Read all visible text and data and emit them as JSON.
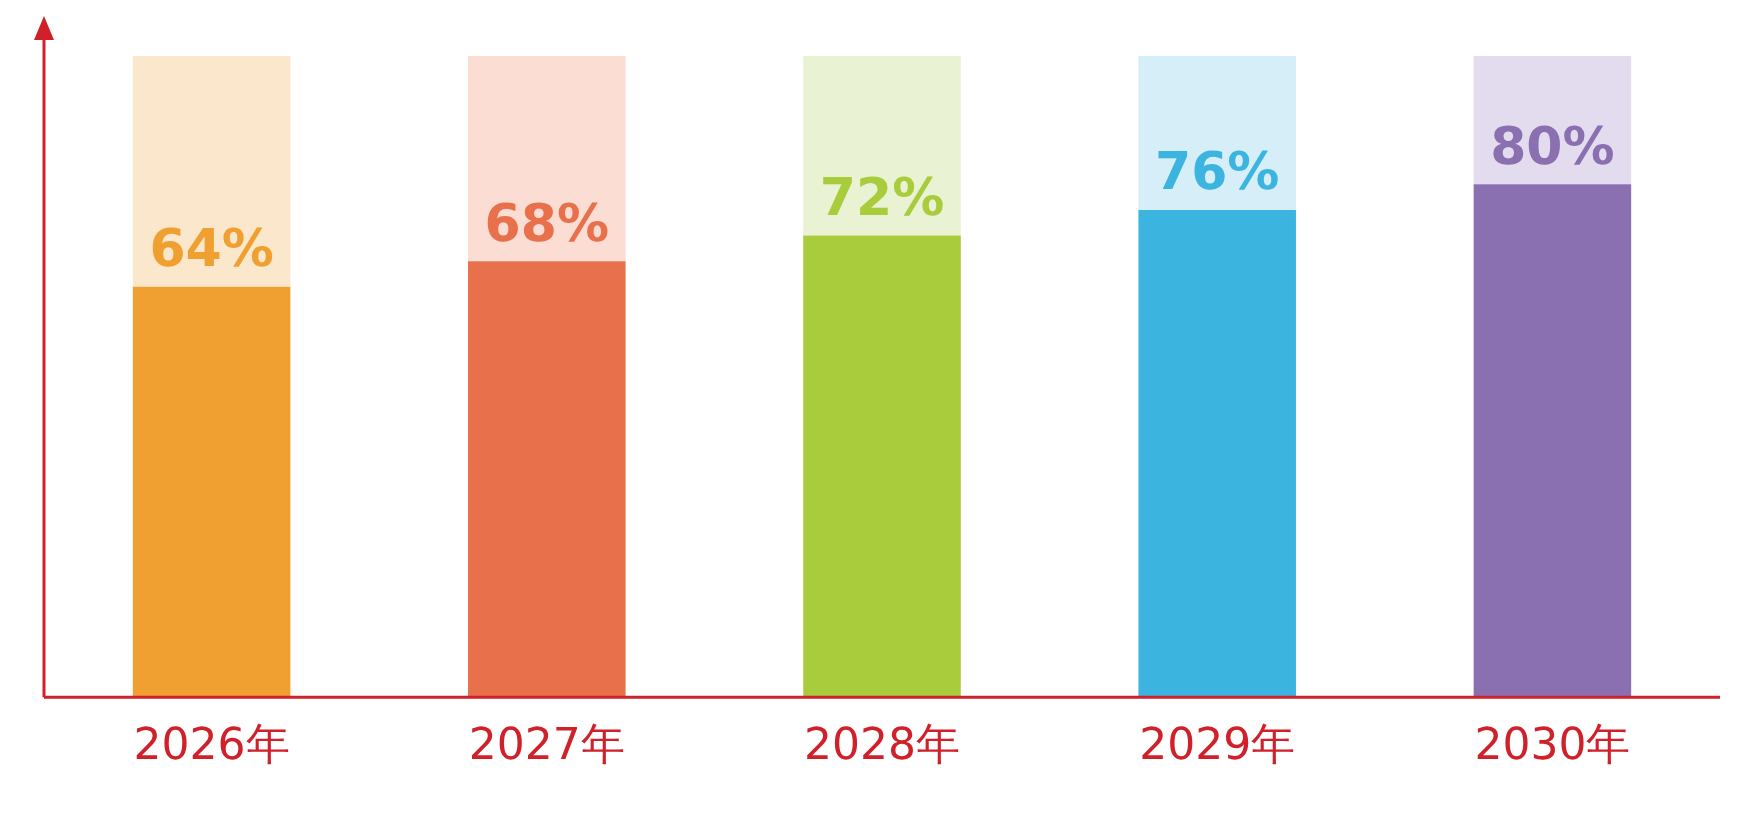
{
  "chart_data": {
    "type": "bar",
    "categories": [
      "2026年",
      "2027年",
      "2028年",
      "2029年",
      "2030年"
    ],
    "series": [
      {
        "colors": [
          "#f0a030",
          "#e8704a",
          "#a8cc3c",
          "#3cb4e0",
          "#8a70b0"
        ],
        "values": [
          64,
          68,
          72,
          76,
          80
        ],
        "value_labels": [
          "64%",
          "68%",
          "72%",
          "76%",
          "80%"
        ]
      },
      {
        "colors": [
          "#fbe8cc",
          "#fbddd4",
          "#e9f2d2",
          "#d6eef8",
          "#e2dcee"
        ],
        "values": [
          36,
          32,
          28,
          24,
          20
        ]
      }
    ],
    "stacked": true,
    "ylim": [
      0,
      100
    ],
    "tick_labels": "x"
  }
}
